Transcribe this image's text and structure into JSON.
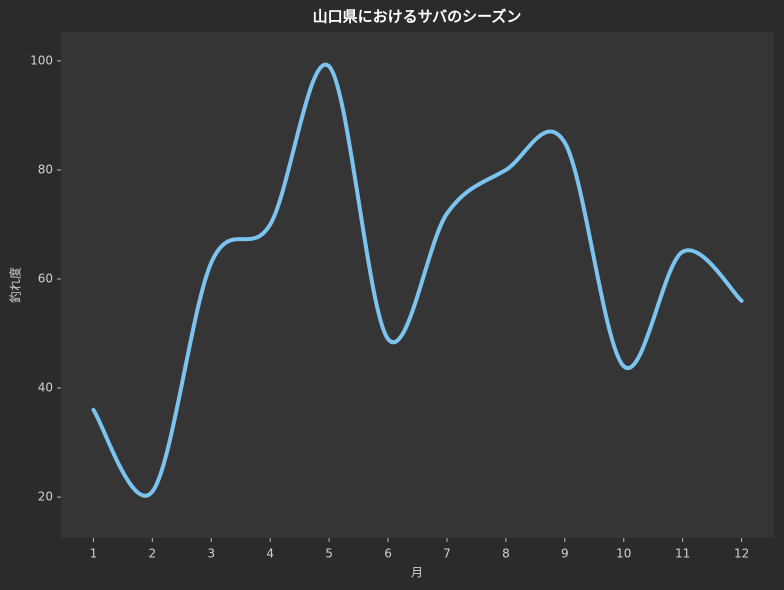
{
  "chart_data": {
    "type": "line",
    "title": "山口県におけるサバのシーズン",
    "x_label": "月",
    "y_label": "釣れ度",
    "x": [
      1,
      2,
      3,
      4,
      5,
      6,
      7,
      8,
      9,
      10,
      11,
      12
    ],
    "series": [
      {
        "name": "釣れ度",
        "color": "#7cc4f0",
        "values": [
          36,
          21,
          63,
          70,
          99,
          49,
          72,
          80,
          85,
          44,
          65,
          56
        ]
      }
    ],
    "xlim": [
      0.45,
      12.55
    ],
    "ylim": [
      12.5,
      105.3
    ],
    "xticks": [
      1,
      2,
      3,
      4,
      5,
      6,
      7,
      8,
      9,
      10,
      11,
      12
    ],
    "yticks": [
      20,
      40,
      60,
      80,
      100
    ],
    "grid": false
  }
}
